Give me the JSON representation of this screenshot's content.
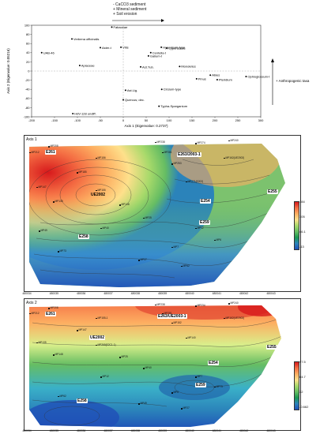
{
  "legend_arrow": {
    "lines": [
      "- CaCO3 sediment",
      "+ Mineral sediment",
      "+ Soil erosion"
    ]
  },
  "scatter": {
    "xlabel": "Axis 1 (Eigenvalue: 0.2737)",
    "ylabel": "Axis 2 (Eigenvalue: 0.05216)",
    "side_label": "+ Anthropogenic taxa",
    "xticks": [
      "-200",
      "-150",
      "-100",
      "-50",
      "0",
      "50",
      "100",
      "150",
      "200",
      "250",
      "300"
    ],
    "yticks": [
      "100",
      "80",
      "60",
      "40",
      "20",
      "0",
      "-20",
      "-40",
      "-60",
      "-80",
      "-100"
    ]
  },
  "chart_data": {
    "type": "scatter",
    "xlabel": "Axis 1 (Eigenvalue: 0.2737)",
    "ylabel": "Axis 2 (Eigenvalue: 0.05216)",
    "xlim": [
      -200,
      300
    ],
    "ylim": [
      -100,
      100
    ],
    "points": [
      {
        "label": "Fabaceae",
        "x": -25,
        "y": 96
      },
      {
        "label": "Verbena officinalis",
        "x": -112,
        "y": 70
      },
      {
        "label": "Aster-t",
        "x": -50,
        "y": 51
      },
      {
        "label": "Vitis",
        "x": -5,
        "y": 52
      },
      {
        "label": "Hypericum-type",
        "x": 83,
        "y": 52
      },
      {
        "label": "Cyperaceae",
        "x": 95,
        "y": 50
      },
      {
        "label": "Centella-t",
        "x": 60,
        "y": 40
      },
      {
        "label": "Galium-t",
        "x": 55,
        "y": 33
      },
      {
        "label": "UAB-46",
        "x": -178,
        "y": 40
      },
      {
        "label": "Apiaceae",
        "x": -95,
        "y": 12
      },
      {
        "label": "Ast.Tub.",
        "x": 38,
        "y": 9
      },
      {
        "label": "Monoletes",
        "x": 123,
        "y": 10
      },
      {
        "label": "Abies",
        "x": 190,
        "y": -9
      },
      {
        "label": "Pinus",
        "x": 160,
        "y": -17
      },
      {
        "label": "Pteridium",
        "x": 205,
        "y": -19
      },
      {
        "label": "Ophioglossum-t",
        "x": 268,
        "y": -12
      },
      {
        "label": "Ast.Lig.",
        "x": 5,
        "y": -42
      },
      {
        "label": "Cirsium-type",
        "x": 84,
        "y": -40
      },
      {
        "label": "Quercus; dec.",
        "x": 0,
        "y": -63
      },
      {
        "label": "Typha-Sparganium",
        "x": 78,
        "y": -77
      },
      {
        "label": "HdV-128 undiff.",
        "x": -110,
        "y": -93
      }
    ]
  },
  "map1": {
    "title": "Axis 1",
    "zones": [
      "E261",
      "E263/2003-1",
      "UE2002",
      "E254",
      "E255",
      "E259",
      "E258"
    ],
    "colorbar": [
      "184",
      "105",
      "46.1",
      "-13"
    ],
    "mp_labels": [
      "MP208",
      "MP212",
      "MP238",
      "MP274",
      "MP240",
      "MP281",
      "MP156",
      "MP253",
      "MP162(UE2002)",
      "MP185",
      "MP271(E202)",
      "MP155",
      "MP147",
      "MP135",
      "MP148",
      "MP25",
      "MP40",
      "MP12",
      "MP7",
      "MP6",
      "MP73",
      "MP62",
      "MP27",
      "MP49"
    ]
  },
  "map2": {
    "title": "Axis 2",
    "zones": [
      "E261",
      "E263/UE2003-1",
      "UE2002",
      "E254",
      "E255",
      "E259",
      "E258"
    ],
    "colorbar": [
      "97.5",
      "64.7",
      "32",
      "-0.662"
    ],
    "mp_labels": [
      "MP208",
      "MP212",
      "MP238",
      "MP234",
      "MP240",
      "MP281",
      "MP155-1",
      "MP152",
      "MP162(UE2002)",
      "MP147",
      "MP140",
      "MP265(E2C1-1)",
      "MP135",
      "MP148",
      "MP25",
      "MP40",
      "MP12",
      "MP7",
      "MP6",
      "MP73",
      "MP62",
      "MP27",
      "MP49"
    ]
  },
  "x_axis_ticks": [
    "480034",
    "480035",
    "480036",
    "480037",
    "480038",
    "480039",
    "480040",
    "480041",
    "480042",
    "480043"
  ]
}
